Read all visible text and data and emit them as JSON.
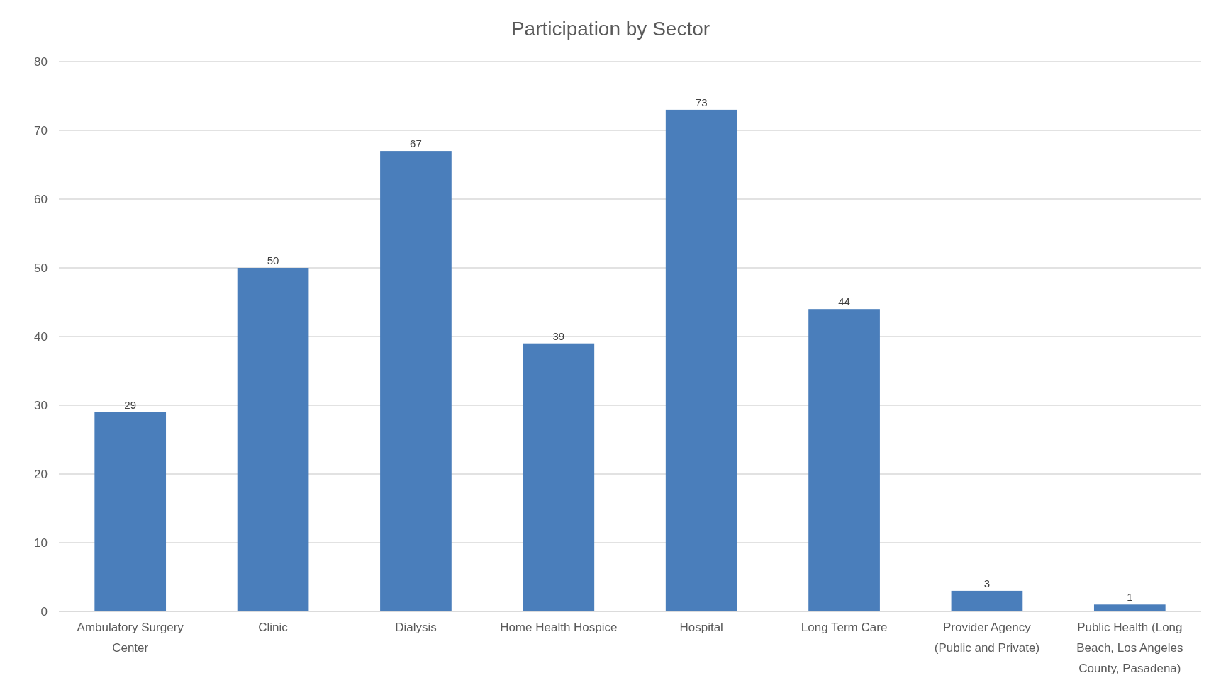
{
  "chart_data": {
    "type": "bar",
    "title": "Participation by Sector",
    "categories": [
      "Ambulatory Surgery Center",
      "Clinic",
      "Dialysis",
      "Home Health Hospice",
      "Hospital",
      "Long Term Care",
      "Provider Agency (Public and Private)",
      "Public Health (Long Beach, Los Angeles County, Pasadena)"
    ],
    "values": [
      29,
      50,
      67,
      39,
      73,
      44,
      3,
      1
    ],
    "color": "#4a7ebb",
    "ylim": [
      0,
      80
    ],
    "yticks": [
      0,
      10,
      20,
      30,
      40,
      50,
      60,
      70,
      80
    ],
    "grid": "y",
    "data_labels": true
  }
}
